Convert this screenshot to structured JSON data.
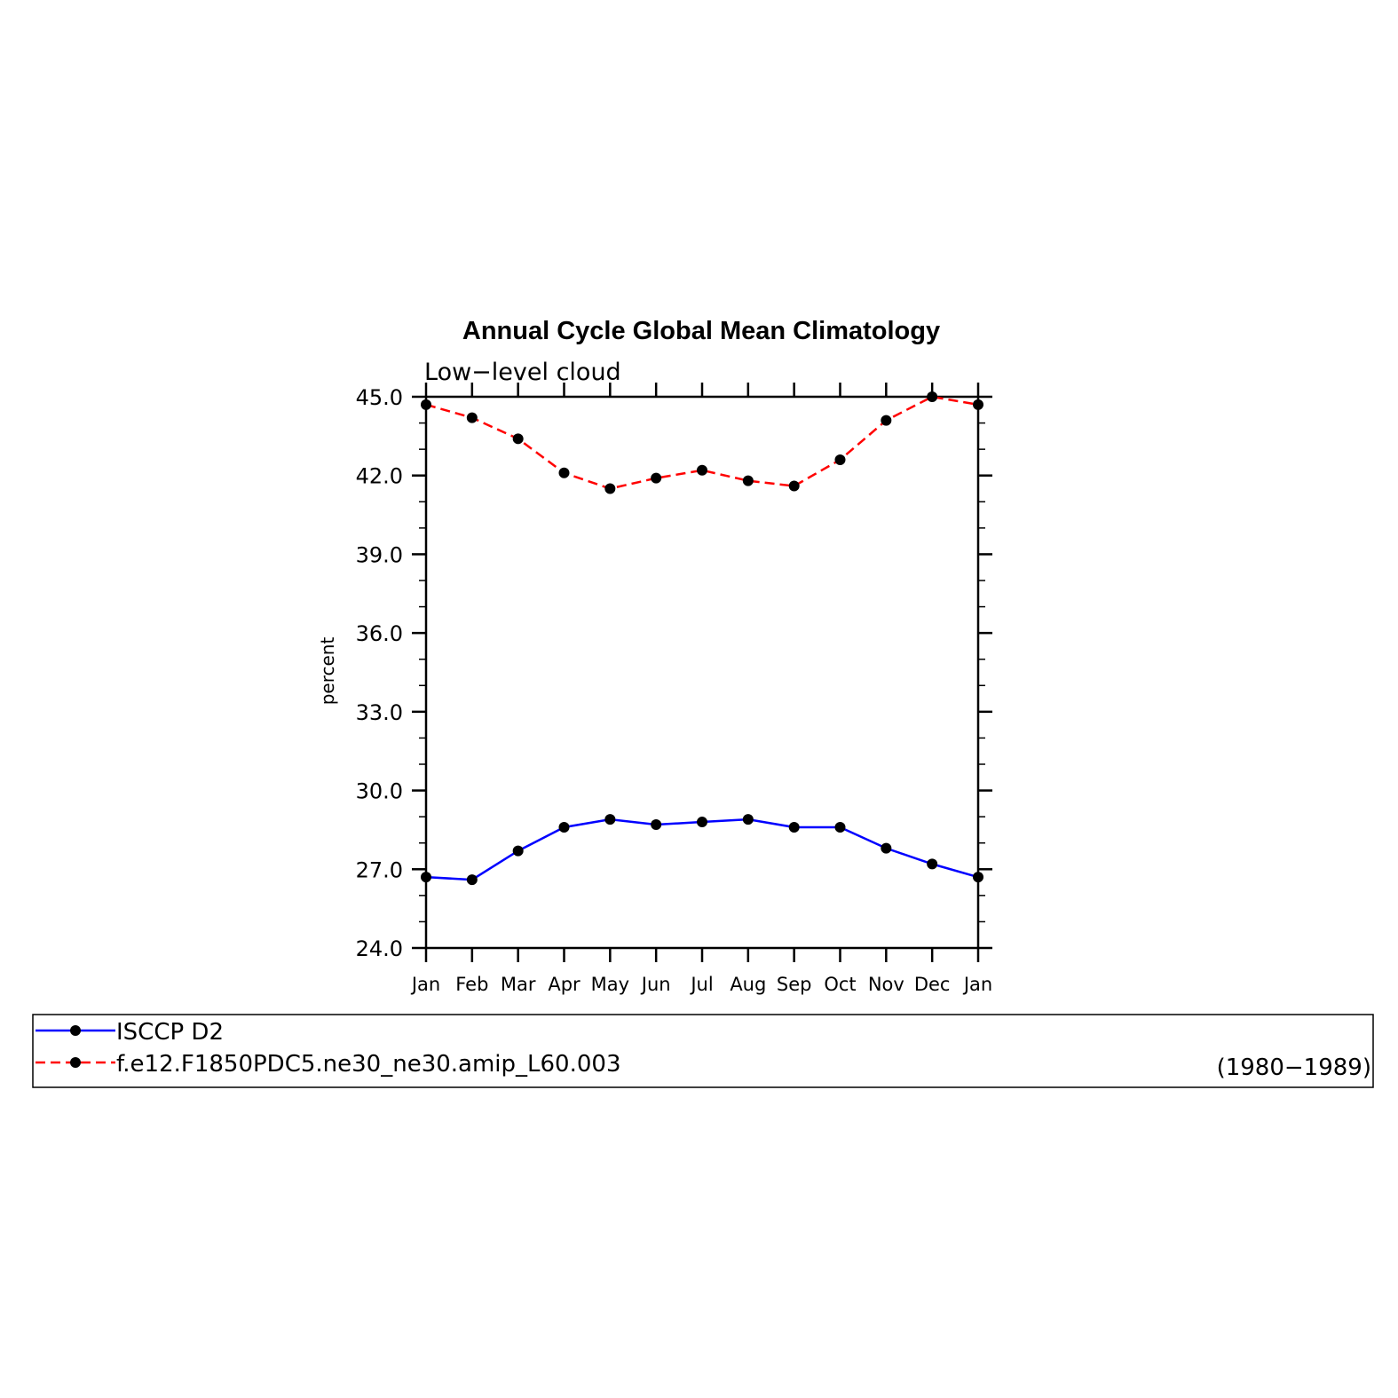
{
  "chart_data": {
    "type": "line",
    "title": "Annual Cycle Global Mean Climatology",
    "subtitle": "Low−level cloud",
    "ylabel": "percent",
    "xlabel": "",
    "categories": [
      "Jan",
      "Feb",
      "Mar",
      "Apr",
      "May",
      "Jun",
      "Jul",
      "Aug",
      "Sep",
      "Oct",
      "Nov",
      "Dec",
      "Jan"
    ],
    "ylim": [
      24.0,
      45.0
    ],
    "yticks": [
      "24.0",
      "27.0",
      "30.0",
      "33.0",
      "36.0",
      "39.0",
      "42.0",
      "45.0"
    ],
    "grid": false,
    "legend_position": "bottom",
    "series": [
      {
        "name": "ISCCP D2",
        "color": "#0000ff",
        "dash": "solid",
        "values": [
          26.7,
          26.6,
          27.7,
          28.6,
          28.9,
          28.7,
          28.8,
          28.9,
          28.6,
          28.6,
          27.8,
          27.2,
          26.7
        ]
      },
      {
        "name": "f.e12.F1850PDC5.ne30_ne30.amip_L60.003",
        "color": "#ff0000",
        "dash": "dashed",
        "values": [
          44.7,
          44.2,
          43.4,
          42.1,
          41.5,
          41.9,
          42.2,
          41.8,
          41.6,
          42.6,
          44.1,
          45.0,
          44.7
        ]
      }
    ],
    "legend_note": "(1980−1989)"
  }
}
